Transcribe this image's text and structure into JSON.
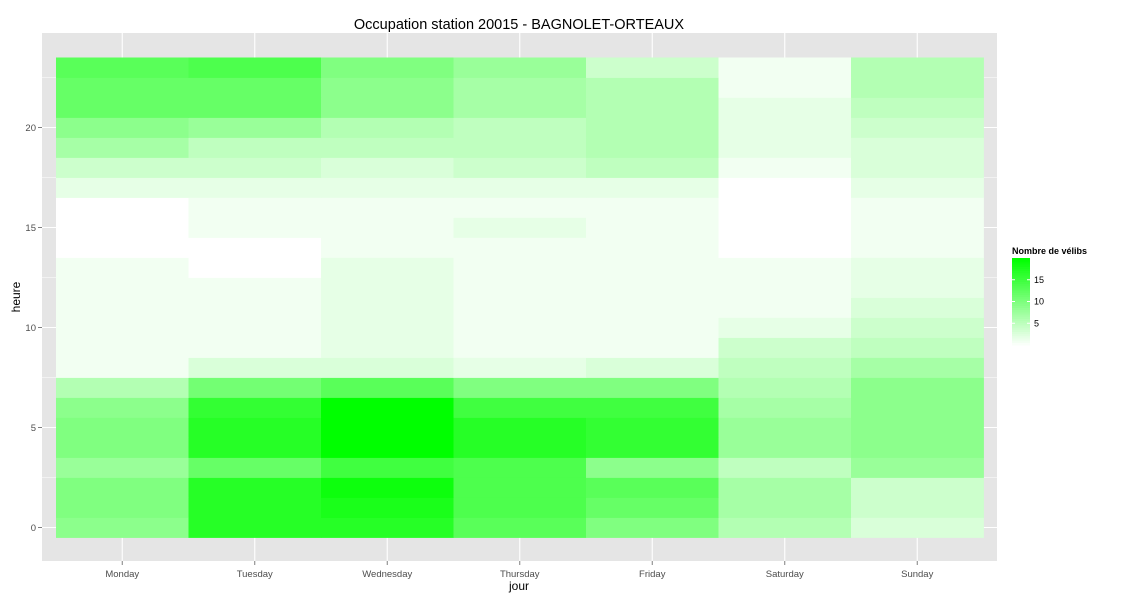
{
  "chart_data": {
    "type": "heatmap",
    "title": "Occupation station 20015 - BAGNOLET-ORTEAUX",
    "xlabel": "jour",
    "ylabel": "heure",
    "x_categories": [
      "Monday",
      "Tuesday",
      "Wednesday",
      "Thursday",
      "Friday",
      "Saturday",
      "Sunday"
    ],
    "y_ticks": [
      0,
      5,
      10,
      15,
      20
    ],
    "ylim": [
      -0.5,
      23.5
    ],
    "hours": [
      0,
      1,
      2,
      3,
      4,
      5,
      6,
      7,
      8,
      9,
      10,
      11,
      12,
      13,
      14,
      15,
      16,
      17,
      18,
      19,
      20,
      21,
      22,
      23
    ],
    "values": [
      [
        9,
        17,
        17,
        13,
        10,
        6,
        3
      ],
      [
        10,
        17,
        18,
        14,
        12,
        7,
        4
      ],
      [
        10,
        17,
        19,
        14,
        13,
        7,
        4
      ],
      [
        8,
        12,
        15,
        14,
        9,
        5,
        8
      ],
      [
        10,
        17,
        21,
        17,
        16,
        8,
        9
      ],
      [
        10,
        17,
        21,
        17,
        16,
        8,
        9
      ],
      [
        9,
        16,
        20,
        15,
        15,
        7,
        9
      ],
      [
        6,
        11,
        13,
        10,
        10,
        6,
        9
      ],
      [
        1,
        3,
        3,
        2,
        3,
        5,
        7
      ],
      [
        1,
        1,
        2,
        1,
        1,
        4,
        5
      ],
      [
        1,
        1,
        2,
        1,
        1,
        2,
        4
      ],
      [
        1,
        1,
        2,
        1,
        1,
        1,
        3
      ],
      [
        1,
        1,
        2,
        1,
        1,
        1,
        2
      ],
      [
        1,
        0,
        2,
        1,
        1,
        1,
        2
      ],
      [
        0,
        0,
        1,
        1,
        1,
        0,
        1
      ],
      [
        0,
        1,
        1,
        2,
        1,
        0,
        1
      ],
      [
        0,
        1,
        1,
        1,
        1,
        0,
        1
      ],
      [
        2,
        2,
        2,
        2,
        2,
        0,
        2
      ],
      [
        4,
        4,
        3,
        4,
        5,
        1,
        3
      ],
      [
        7,
        5,
        5,
        5,
        6,
        2,
        3
      ],
      [
        9,
        8,
        6,
        5,
        6,
        2,
        4
      ],
      [
        12,
        12,
        9,
        7,
        6,
        2,
        5
      ],
      [
        12,
        12,
        9,
        7,
        6,
        1,
        6
      ],
      [
        13,
        14,
        10,
        8,
        4,
        1,
        6
      ]
    ],
    "scale_min": 0,
    "scale_max": 20,
    "color_low": "#ffffff",
    "color_high": "#00ff00",
    "grid": true,
    "panel_background": "#e5e5e5",
    "legend": {
      "title": "Nombre de vélibs",
      "labels": [
        "15",
        "10",
        "5"
      ],
      "label_values": [
        15,
        10,
        5
      ],
      "placement": "right"
    }
  }
}
